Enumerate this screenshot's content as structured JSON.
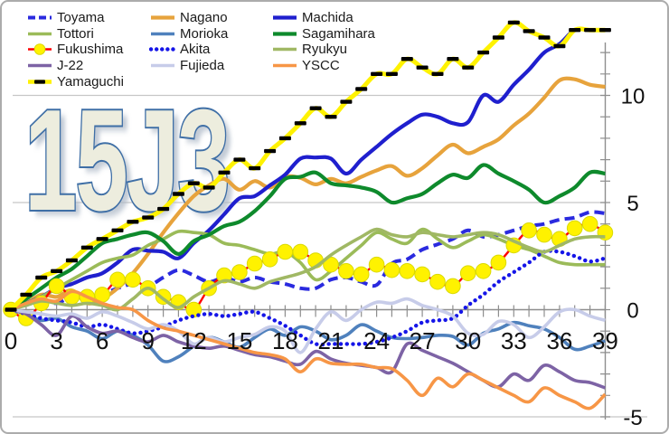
{
  "chart_data": {
    "type": "line",
    "title": "15J3",
    "xlabel": "",
    "ylabel": "",
    "xlim": [
      0,
      39
    ],
    "ylim": [
      -5.5,
      14
    ],
    "grid": true,
    "y_gridlines": [
      10,
      5,
      0,
      -5
    ],
    "legend_position": "top-left",
    "x_values": [
      0,
      1,
      2,
      3,
      4,
      5,
      6,
      7,
      8,
      9,
      10,
      11,
      12,
      13,
      14,
      15,
      16,
      17,
      18,
      19,
      20,
      21,
      22,
      23,
      24,
      25,
      26,
      27,
      28,
      29,
      30,
      31,
      32,
      33,
      34,
      35,
      36,
      37,
      38,
      39
    ],
    "series": [
      {
        "name": "Toyama",
        "color": "#2A2ADF",
        "dash": "dashed",
        "width": 4,
        "marker": "none",
        "values": [
          0,
          0.3,
          0.5,
          0.3,
          0.6,
          0.4,
          0.7,
          1.0,
          1.2,
          1.1,
          1.5,
          1.85,
          1.6,
          1.3,
          1.5,
          1.3,
          1.5,
          1.3,
          1.2,
          1.0,
          1.0,
          1.4,
          1.5,
          1.3,
          1.15,
          2.15,
          2.35,
          2.8,
          3.05,
          3.3,
          3.7,
          3.4,
          3.5,
          3.7,
          3.9,
          4.0,
          4.2,
          4.3,
          4.55,
          4.5
        ]
      },
      {
        "name": "Nagano",
        "color": "#E7A33C",
        "dash": "solid",
        "width": 4.2,
        "marker": "none",
        "values": [
          0,
          0.3,
          0.7,
          0.6,
          0.9,
          0.3,
          0.5,
          1.0,
          1.7,
          2.6,
          3.6,
          4.5,
          5.3,
          5.8,
          6.1,
          5.6,
          6.0,
          5.7,
          6.2,
          6.15,
          5.85,
          6.1,
          5.9,
          6.2,
          6.5,
          6.7,
          6.25,
          6.6,
          7.2,
          7.7,
          7.3,
          7.6,
          7.95,
          8.6,
          9.15,
          9.9,
          10.7,
          10.75,
          10.5,
          10.4
        ]
      },
      {
        "name": "Machida",
        "color": "#1F1FCE",
        "dash": "solid",
        "width": 4.2,
        "marker": "none",
        "values": [
          0,
          0.3,
          0.6,
          1.0,
          1.2,
          1.5,
          1.7,
          2.2,
          2.8,
          2.75,
          2.7,
          2.4,
          3.1,
          3.7,
          4.45,
          5.2,
          5.3,
          5.8,
          6.3,
          7.05,
          7.1,
          7.05,
          6.35,
          7.0,
          7.6,
          8.2,
          8.7,
          9.1,
          9.0,
          8.7,
          8.75,
          10.0,
          9.7,
          10.5,
          11.2,
          12.0,
          12.4,
          13.05,
          13.05,
          13.05
        ]
      },
      {
        "name": "Tottori",
        "color": "#9BBB59",
        "dash": "solid",
        "width": 3.6,
        "marker": "none",
        "values": [
          0,
          0.3,
          0.6,
          1.0,
          1.4,
          1.8,
          2.2,
          2.4,
          2.55,
          3.0,
          3.3,
          3.65,
          3.6,
          3.5,
          3.1,
          3.0,
          2.8,
          2.6,
          2.7,
          2.2,
          1.4,
          1.8,
          2.4,
          3.0,
          3.6,
          3.3,
          3.1,
          3.75,
          3.3,
          2.9,
          3.2,
          3.5,
          3.3,
          3.0,
          2.8,
          2.5,
          2.2,
          2.1,
          2.1,
          2.1
        ]
      },
      {
        "name": "Morioka",
        "color": "#4F81BD",
        "dash": "solid",
        "width": 3.6,
        "marker": "none",
        "values": [
          0,
          -0.2,
          -0.5,
          -0.4,
          -0.8,
          -1.0,
          -1.35,
          -1.0,
          -1.2,
          -1.65,
          -2.4,
          -2.2,
          -1.7,
          -1.3,
          -1.5,
          -1.75,
          -1.3,
          -0.9,
          -1.2,
          -0.8,
          -1.0,
          -1.4,
          -1.2,
          -0.7,
          -1.0,
          -1.3,
          -1.35,
          -1.3,
          -1.2,
          -1.25,
          -1.65,
          -1.1,
          -0.9,
          -0.6,
          -0.75,
          -0.9,
          -1.3,
          -1.85,
          -1.7,
          -1.45
        ]
      },
      {
        "name": "Sagamihara",
        "color": "#0E8A2C",
        "dash": "solid",
        "width": 4.2,
        "marker": "none",
        "values": [
          0,
          0.5,
          1.0,
          1.5,
          1.9,
          2.5,
          3.1,
          3.3,
          3.5,
          3.6,
          3.2,
          2.6,
          3.2,
          3.5,
          3.9,
          4.1,
          4.6,
          5.3,
          6.1,
          6.2,
          6.4,
          5.9,
          5.8,
          5.7,
          5.5,
          5.0,
          5.2,
          5.4,
          5.9,
          6.3,
          6.15,
          6.75,
          6.35,
          6.0,
          5.6,
          5.0,
          5.3,
          5.7,
          6.4,
          6.35
        ]
      },
      {
        "name": "Fukushima",
        "color": "#FF0000",
        "dash": "solid",
        "width": 2.4,
        "marker": "yellow-circle",
        "marker_color": "#FFF200",
        "values": [
          0,
          -0.4,
          0.3,
          1.1,
          0.6,
          0.6,
          0.7,
          1.4,
          1.4,
          1.0,
          0.6,
          0.35,
          0,
          1.0,
          1.6,
          1.75,
          2.15,
          2.35,
          2.7,
          2.7,
          2.3,
          2.1,
          1.8,
          1.65,
          2.1,
          1.85,
          1.8,
          1.65,
          1.3,
          1.1,
          1.7,
          1.8,
          2.2,
          3.0,
          3.7,
          3.5,
          3.3,
          3.8,
          4.0,
          3.6
        ]
      },
      {
        "name": "Akita",
        "color": "#1515E8",
        "dash": "dotted",
        "width": 4.4,
        "marker": "none",
        "values": [
          0,
          -0.2,
          -0.4,
          -0.5,
          -0.6,
          -0.8,
          -0.7,
          -0.9,
          -1.1,
          -1.0,
          -0.8,
          -0.5,
          -0.3,
          -0.2,
          -0.3,
          -0.2,
          -0.1,
          -0.4,
          -0.75,
          -1.2,
          -1.6,
          -1.6,
          -1.6,
          -1.6,
          -1.5,
          -1.3,
          -1.0,
          -0.6,
          -0.5,
          -0.4,
          0.2,
          0.7,
          1.3,
          1.75,
          2.2,
          2.7,
          2.7,
          2.5,
          2.25,
          2.4
        ]
      },
      {
        "name": "Ryukyu",
        "color": "#A0B864",
        "dash": "solid",
        "width": 3.6,
        "marker": "none",
        "values": [
          0,
          0.2,
          0.4,
          0.3,
          0.2,
          0.3,
          0.2,
          0.0,
          0.5,
          1.0,
          0.5,
          0.1,
          0.6,
          1.0,
          1.35,
          1.2,
          1.0,
          1.3,
          1.5,
          1.7,
          2.0,
          2.55,
          3.0,
          3.4,
          3.75,
          3.5,
          3.4,
          3.6,
          3.5,
          3.4,
          3.5,
          3.6,
          3.5,
          3.2,
          2.9,
          2.7,
          3.0,
          3.3,
          3.4,
          3.4
        ]
      },
      {
        "name": "J-22",
        "color": "#7D63A5",
        "dash": "solid",
        "width": 3.6,
        "marker": "none",
        "values": [
          0,
          -0.2,
          -0.7,
          -1.2,
          -0.3,
          -0.8,
          -1.1,
          -1.0,
          -1.3,
          -1.5,
          -1.2,
          -1.5,
          -1.7,
          -1.8,
          -1.7,
          -1.9,
          -2.1,
          -2.2,
          -2.4,
          -2.55,
          -1.95,
          -2.3,
          -2.5,
          -2.6,
          -2.7,
          -2.9,
          -1.6,
          -1.9,
          -2.2,
          -2.5,
          -2.9,
          -3.3,
          -3.6,
          -3.0,
          -3.3,
          -2.6,
          -2.9,
          -3.3,
          -3.4,
          -3.65
        ]
      },
      {
        "name": "Fujieda",
        "color": "#C7CCE9",
        "dash": "solid",
        "width": 3.6,
        "marker": "none",
        "values": [
          0,
          -0.1,
          -0.2,
          -0.3,
          -0.2,
          -0.4,
          -0.1,
          -0.3,
          -0.6,
          -0.9,
          -0.7,
          -1.0,
          -1.6,
          -1.3,
          -1.5,
          -1.3,
          -1.15,
          -0.8,
          -1.0,
          -2.0,
          -0.9,
          -0.1,
          -0.5,
          0,
          0.35,
          0.3,
          0.5,
          0.2,
          0,
          -0.3,
          -1.1,
          -1.15,
          -0.55,
          -0.7,
          -1.3,
          -0.8,
          -0.1,
          0,
          -0.3,
          -0.5
        ]
      },
      {
        "name": "YSCC",
        "color": "#F79646",
        "dash": "solid",
        "width": 3.6,
        "marker": "none",
        "values": [
          0,
          0.3,
          0.5,
          0.4,
          0.85,
          0.6,
          0.3,
          0.1,
          0,
          -0.5,
          -0.85,
          -1.0,
          -1.2,
          -1.4,
          -1.6,
          -1.8,
          -2.0,
          -2.1,
          -2.3,
          -2.9,
          -2.3,
          -2.5,
          -2.55,
          -2.55,
          -2.7,
          -2.75,
          -3.3,
          -4.0,
          -3.2,
          -3.6,
          -3.0,
          -3.3,
          -3.65,
          -4.0,
          -4.3,
          -3.65,
          -4.0,
          -4.3,
          -4.6,
          -3.95
        ]
      },
      {
        "name": "Yamaguchi",
        "color": "#FFF200",
        "dash": "solid",
        "width": 5,
        "marker": "black-dash",
        "marker_color": "#000000",
        "values": [
          0,
          0.7,
          1.5,
          1.8,
          2.3,
          2.9,
          3.3,
          3.7,
          4.1,
          4.3,
          4.7,
          5.4,
          5.9,
          5.7,
          6.4,
          7.0,
          6.6,
          7.4,
          8.0,
          8.7,
          9.4,
          9.0,
          9.7,
          10.3,
          11.0,
          11.0,
          11.7,
          11.3,
          11.0,
          11.7,
          11.3,
          12.0,
          12.7,
          13.4,
          13.0,
          12.7,
          12.3,
          13.05,
          13.05,
          13.05
        ]
      }
    ]
  },
  "axes": {
    "x_ticks": [
      {
        "label": "0",
        "value": 0
      },
      {
        "label": "3",
        "value": 3
      },
      {
        "label": "6",
        "value": 6
      },
      {
        "label": "9",
        "value": 9
      },
      {
        "label": "12",
        "value": 12
      },
      {
        "label": "15",
        "value": 15
      },
      {
        "label": "18",
        "value": 18
      },
      {
        "label": "21",
        "value": 21
      },
      {
        "label": "24",
        "value": 24
      },
      {
        "label": "27",
        "value": 27
      },
      {
        "label": "30",
        "value": 30
      },
      {
        "label": "33",
        "value": 33
      },
      {
        "label": "36",
        "value": 36
      },
      {
        "label": "39",
        "value": 39
      }
    ],
    "y_ticks": [
      {
        "label": "10",
        "value": 10
      },
      {
        "label": "5",
        "value": 5
      },
      {
        "label": "0",
        "value": 0
      },
      {
        "label": "-5",
        "value": -5
      }
    ]
  },
  "colors": {
    "background": "#FFFFFF",
    "frame_border": "#ACACAC",
    "gridline": "#C6C6C6",
    "axis": "#8E8E8E",
    "label_text": "#111111",
    "watermark_fill": "#EDEDDE",
    "watermark_outline": "#3F6FA6",
    "watermark_shadow": "#AFBAC8"
  }
}
